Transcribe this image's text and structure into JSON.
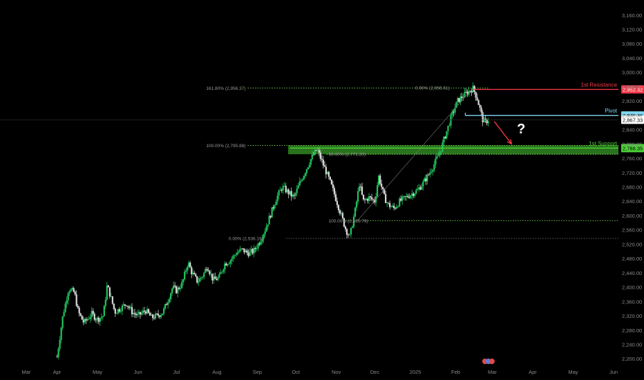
{
  "chart_data": {
    "type": "candlestick",
    "colors": {
      "background": "#000000",
      "up_candle": "#22c55e",
      "down_candle": "#d9d9d9",
      "fib_line": "#7ee05a",
      "resistance": "#f23645",
      "pivot": "#7fd6f2",
      "support": "#4cd137",
      "arrow": "#f23645",
      "axis_text": "#8a8a8a",
      "fib_text": "#9a9a9a"
    },
    "y_axis": {
      "range": [
        2185,
        3175
      ],
      "ticks": [
        "3,160.00",
        "3,120.00",
        "3,080.00",
        "3,040.00",
        "3,000.00",
        "2,960.00",
        "2,920.00",
        "2,880.00",
        "2,840.00",
        "2,800.00",
        "2,760.00",
        "2,720.00",
        "2,680.00",
        "2,640.00",
        "2,600.00",
        "2,560.00",
        "2,520.00",
        "2,480.00",
        "2,440.00",
        "2,400.00",
        "2,360.00",
        "2,320.00",
        "2,280.00",
        "2,240.00",
        "2,200.00"
      ],
      "tick_values": [
        3160,
        3120,
        3080,
        3040,
        3000,
        2960,
        2920,
        2880,
        2840,
        2800,
        2760,
        2720,
        2680,
        2640,
        2600,
        2560,
        2520,
        2480,
        2440,
        2400,
        2360,
        2320,
        2280,
        2240,
        2200
      ]
    },
    "x_axis": {
      "labels": [
        "Mar",
        "Apr",
        "May",
        "Jun",
        "Jul",
        "Aug",
        "Sep",
        "Oct",
        "Nov",
        "Dec",
        "2025",
        "Feb",
        "Mar",
        "Apr",
        "May",
        "Jun"
      ],
      "label_positions": [
        0,
        16,
        37,
        58,
        78,
        99,
        120,
        140,
        161,
        181,
        202,
        223,
        242,
        263,
        284,
        305
      ],
      "range": [
        -13,
        315
      ]
    },
    "price_path": [
      [
        16,
        2205
      ],
      [
        19,
        2320
      ],
      [
        22,
        2395
      ],
      [
        25,
        2385
      ],
      [
        27,
        2330
      ],
      [
        30,
        2300
      ],
      [
        34,
        2325
      ],
      [
        37,
        2310
      ],
      [
        40,
        2320
      ],
      [
        42,
        2405
      ],
      [
        44,
        2370
      ],
      [
        46,
        2330
      ],
      [
        50,
        2345
      ],
      [
        52,
        2355
      ],
      [
        55,
        2330
      ],
      [
        58,
        2320
      ],
      [
        62,
        2335
      ],
      [
        65,
        2315
      ],
      [
        68,
        2320
      ],
      [
        71,
        2330
      ],
      [
        74,
        2370
      ],
      [
        76,
        2400
      ],
      [
        78,
        2390
      ],
      [
        81,
        2410
      ],
      [
        84,
        2470
      ],
      [
        86,
        2440
      ],
      [
        89,
        2415
      ],
      [
        92,
        2435
      ],
      [
        94,
        2460
      ],
      [
        97,
        2420
      ],
      [
        100,
        2425
      ],
      [
        103,
        2465
      ],
      [
        106,
        2475
      ],
      [
        109,
        2495
      ],
      [
        112,
        2505
      ],
      [
        115,
        2495
      ],
      [
        118,
        2500
      ],
      [
        121,
        2525
      ],
      [
        124,
        2560
      ],
      [
        127,
        2605
      ],
      [
        130,
        2650
      ],
      [
        133,
        2680
      ],
      [
        136,
        2665
      ],
      [
        139,
        2650
      ],
      [
        142,
        2690
      ],
      [
        145,
        2725
      ],
      [
        148,
        2760
      ],
      [
        151,
        2785
      ],
      [
        154,
        2745
      ],
      [
        157,
        2705
      ],
      [
        160,
        2660
      ],
      [
        163,
        2610
      ],
      [
        166,
        2560
      ],
      [
        168,
        2540
      ],
      [
        171,
        2620
      ],
      [
        173,
        2690
      ],
      [
        175,
        2640
      ],
      [
        178,
        2650
      ],
      [
        181,
        2640
      ],
      [
        183,
        2710
      ],
      [
        186,
        2650
      ],
      [
        188,
        2630
      ],
      [
        191,
        2620
      ],
      [
        194,
        2640
      ],
      [
        197,
        2650
      ],
      [
        200,
        2660
      ],
      [
        203,
        2670
      ],
      [
        206,
        2690
      ],
      [
        209,
        2715
      ],
      [
        212,
        2745
      ],
      [
        215,
        2780
      ],
      [
        218,
        2830
      ],
      [
        221,
        2880
      ],
      [
        224,
        2920
      ],
      [
        227,
        2935
      ],
      [
        230,
        2948
      ],
      [
        232,
        2955
      ],
      [
        234,
        2930
      ],
      [
        236,
        2890
      ],
      [
        237,
        2868
      ],
      [
        238,
        2860
      ],
      [
        240,
        2867
      ]
    ],
    "fibonacci": [
      {
        "label": "161.80% (2,956.37)",
        "value": 2956.37
      },
      {
        "label": "0.00% (2,956.61)",
        "value": 2956.61
      },
      {
        "label": "100.00% (2,795.88)",
        "value": 2795.88
      },
      {
        "label": "50.00% (2,771.20)",
        "value": 2771.2
      },
      {
        "label": "100.00% (2,585.79)",
        "value": 2585.79
      },
      {
        "label": "0.00% (2,536.19)",
        "value": 2536.19
      }
    ],
    "levels": {
      "resistance": {
        "label": "1st Resistance",
        "value": 2952.32,
        "value_text": "2,952.32"
      },
      "pivot": {
        "label": "Pivot",
        "value": 2879.45,
        "value_text": "2,879.45"
      },
      "support": {
        "label": "1st Support",
        "value": 2788.35,
        "value_text": "2,788.35"
      }
    },
    "last_price": {
      "value": 2867.33,
      "value_text": "2,867.33"
    },
    "question_mark": "?"
  }
}
